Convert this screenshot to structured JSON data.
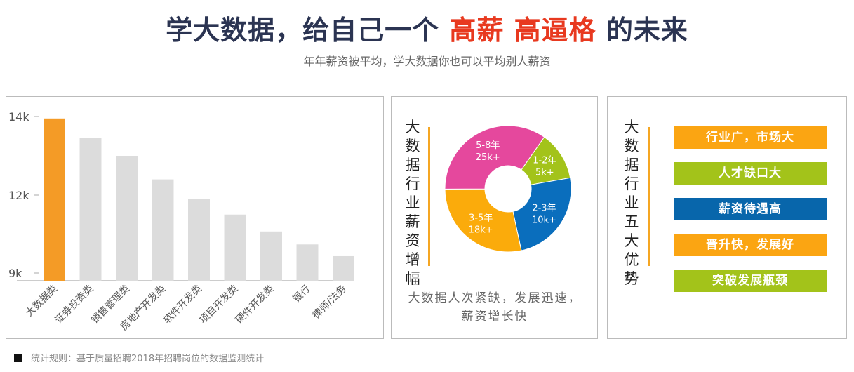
{
  "header": {
    "title_part1": "学大数据，给自己一个 ",
    "title_highlight": "高薪 高逼格",
    "title_part2": " 的未来",
    "subtitle": "年年薪资被平均，学大数据你也可以平均别人薪资",
    "highlight_color": "#e8391f"
  },
  "chart_data": [
    {
      "type": "bar",
      "categories": [
        "大数据类",
        "证券投资类",
        "销售管理类",
        "房地产开发类",
        "软件开发类",
        "项目开发类",
        "硬件开发类",
        "银行",
        "律师/法务"
      ],
      "values": [
        13.95,
        13.45,
        13.0,
        12.4,
        11.85,
        11.25,
        10.6,
        10.1,
        9.65
      ],
      "unit": "k",
      "yticks": [
        "14k",
        "12k",
        "9k"
      ],
      "ytick_values": [
        14,
        12,
        9
      ],
      "highlight_color": "#f49b26",
      "bar_color": "#dcdcdc",
      "grid": false
    },
    {
      "type": "pie",
      "donut": true,
      "title": "大数据行业薪资增幅",
      "slices": [
        {
          "label": "1-2年",
          "value": "5k+",
          "share": 12.5,
          "color": "#a3c31a"
        },
        {
          "label": "2-3年",
          "value": "10k+",
          "share": 24.4,
          "color": "#0a6ebd"
        },
        {
          "label": "3-5年",
          "value": "18k+",
          "share": 28.3,
          "color": "#fbab0b"
        },
        {
          "label": "5-8年",
          "value": "25k+",
          "share": 34.8,
          "color": "#e5489d"
        }
      ]
    }
  ],
  "middle": {
    "description_line1": "大数据人次紧缺，发展迅速，",
    "description_line2": "薪资增长快"
  },
  "right": {
    "title": "大数据行业五大优势",
    "items": [
      {
        "label": "行业广，市场大",
        "color": "#fba512"
      },
      {
        "label": "人才缺口大",
        "color": "#a3c31a"
      },
      {
        "label": "薪资待遇高",
        "color": "#0866ab"
      },
      {
        "label": "晋升快，发展好",
        "color": "#fba512"
      },
      {
        "label": "突破发展瓶颈",
        "color": "#a3c31a"
      }
    ]
  },
  "footer": {
    "note": "统计规则：基于质量招聘2018年招聘岗位的数据监测统计"
  }
}
